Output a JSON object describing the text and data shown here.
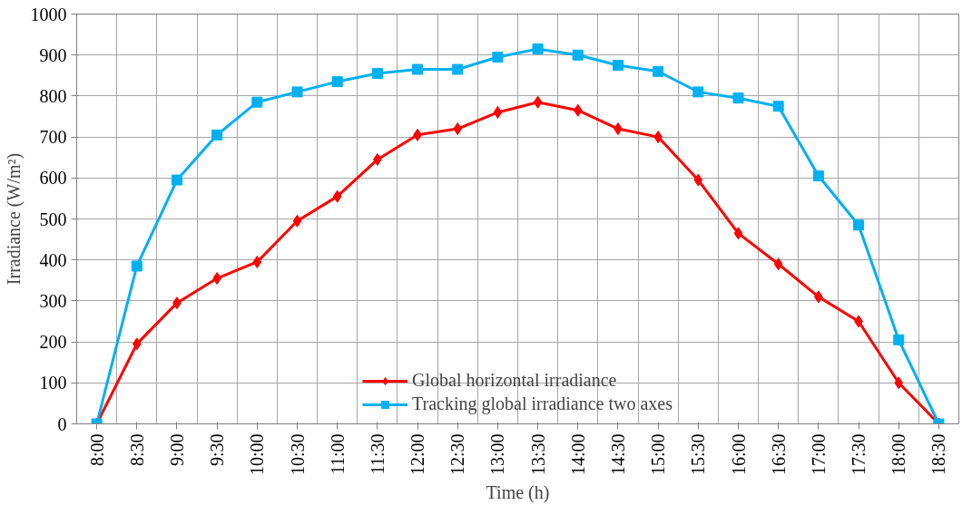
{
  "chart_data": {
    "type": "line",
    "xlabel": "Time (h)",
    "ylabel": "Irradiance (W/m²)",
    "categories": [
      "8:00",
      "8:30",
      "9:00",
      "9:30",
      "10:00",
      "10:30",
      "11:00",
      "11:30",
      "12:00",
      "12:30",
      "13:00",
      "13:30",
      "14:00",
      "14:30",
      "15:00",
      "15:30",
      "16:00",
      "16:30",
      "17:00",
      "17:30",
      "18:00",
      "18:30"
    ],
    "series": [
      {
        "name": "Global horizontal irradiance",
        "color": "#ff0000",
        "marker": "diamond",
        "values": [
          0,
          195,
          295,
          355,
          395,
          495,
          555,
          645,
          705,
          720,
          760,
          785,
          765,
          720,
          700,
          595,
          465,
          390,
          310,
          250,
          100,
          0
        ]
      },
      {
        "name": "Tracking global irradiance two axes",
        "color": "#00b0f0",
        "marker": "square",
        "values": [
          0,
          385,
          595,
          705,
          785,
          810,
          835,
          855,
          865,
          865,
          895,
          915,
          900,
          875,
          860,
          810,
          795,
          775,
          605,
          485,
          205,
          0
        ]
      }
    ],
    "ylim": [
      0,
      1000
    ],
    "yticks": [
      0,
      100,
      200,
      300,
      400,
      500,
      600,
      700,
      800,
      900,
      1000
    ],
    "grid": true,
    "legend": "bottom",
    "line_style": "solid"
  }
}
